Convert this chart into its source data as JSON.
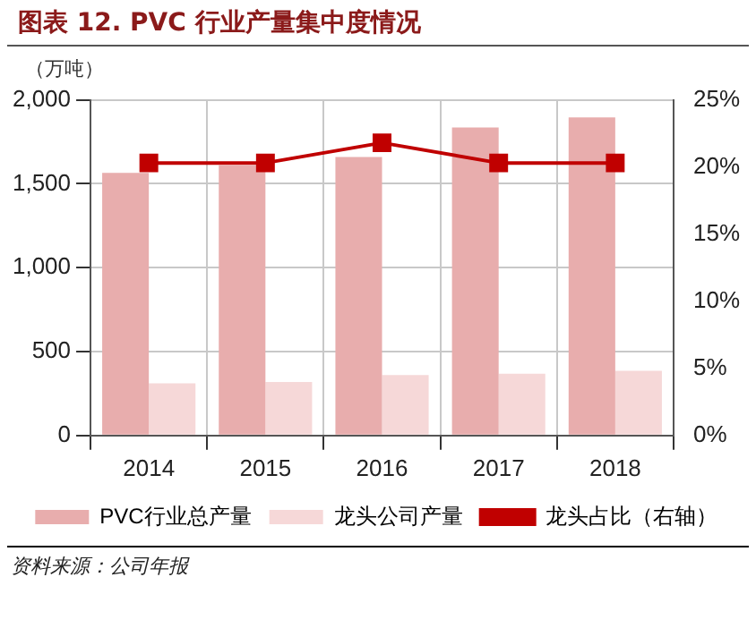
{
  "chart_data": {
    "type": "bar",
    "title": "图表 12. PVC 行业产量集中度情况",
    "ylabel": "（万吨）",
    "categories": [
      "2014",
      "2015",
      "2016",
      "2017",
      "2018"
    ],
    "series": [
      {
        "name": "PVC行业总产量",
        "color": "#e8adad",
        "values": [
          1565,
          1610,
          1659,
          1835,
          1895
        ]
      },
      {
        "name": "龙头公司产量",
        "color": "#f6d8d8",
        "values": [
          311,
          319,
          360,
          368,
          386
        ]
      },
      {
        "name": "龙头占比（右轴）",
        "type": "line",
        "axis": "y2",
        "color": "#c00000",
        "values": [
          20.3,
          20.3,
          21.8,
          20.3,
          20.3
        ]
      }
    ],
    "ylim": [
      0,
      2000
    ],
    "yticks": [
      0,
      {
        "value": 500,
        "label": "500"
      },
      {
        "value": 1000,
        "label": "1,000"
      },
      {
        "value": 1500,
        "label": "1,500"
      },
      {
        "value": 2000,
        "label": "2,000"
      }
    ],
    "y2lim": [
      0,
      25
    ],
    "y2ticks": [
      {
        "value": 0,
        "label": "0%"
      },
      {
        "value": 5,
        "label": "5%"
      },
      {
        "value": 10,
        "label": "10%"
      },
      {
        "value": 15,
        "label": "15%"
      },
      {
        "value": 20,
        "label": "20%"
      },
      {
        "value": 25,
        "label": "25%"
      }
    ],
    "grid": true,
    "legend": "bottom",
    "marker": "square",
    "line_style": "solid",
    "annotations": [
      "资料来源：公司年报"
    ]
  }
}
